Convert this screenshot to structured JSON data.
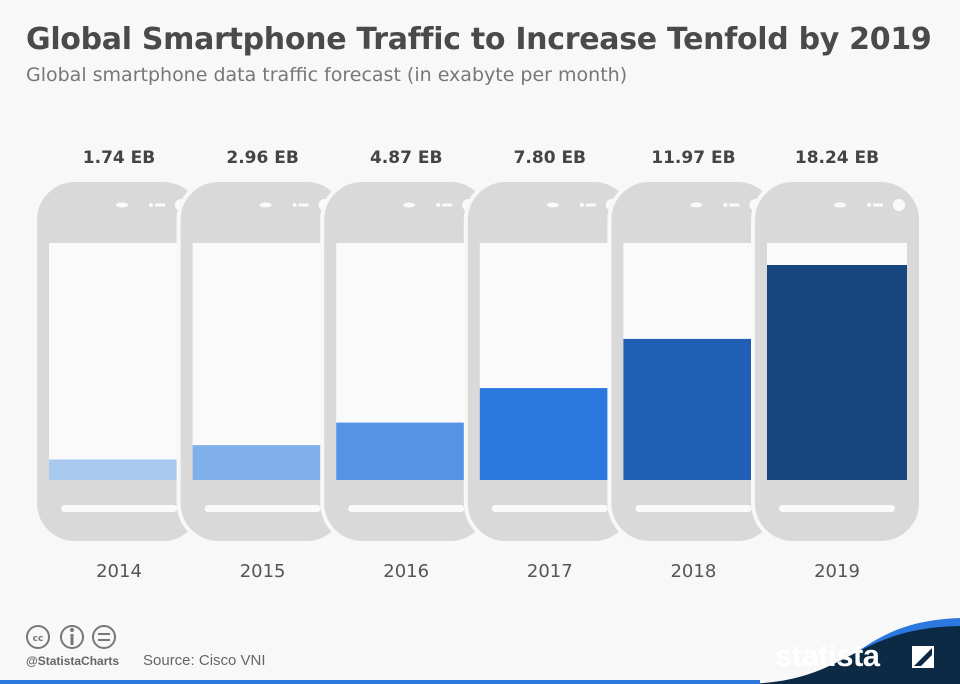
{
  "title": "Global Smartphone Traffic to Increase Tenfold by 2019",
  "subtitle": "Global smartphone data traffic forecast (in exabyte per month)",
  "chart_data": {
    "type": "bar",
    "categories": [
      "2014",
      "2015",
      "2016",
      "2017",
      "2018",
      "2019"
    ],
    "values": [
      1.74,
      2.96,
      4.87,
      7.8,
      11.97,
      18.24
    ],
    "data_labels": [
      "1.74 EB",
      "2.96 EB",
      "4.87 EB",
      "7.80 EB",
      "11.97 EB",
      "18.24 EB"
    ],
    "unit": "EB",
    "colors": [
      "#a9c9f1",
      "#80b0ea",
      "#5594e4",
      "#2b79de",
      "#1f60b5",
      "#17467f"
    ],
    "ylim": [
      0,
      20
    ],
    "grid": false
  },
  "footer": {
    "handle": "@StatistaCharts",
    "source": "Source: Cisco VNI",
    "brand": "statista",
    "license_icons": [
      "cc-icon",
      "by-icon",
      "nd-icon"
    ]
  },
  "colors": {
    "phone": "#d9d9d9",
    "navy": "#0d2a45",
    "accent": "#2b79de"
  }
}
